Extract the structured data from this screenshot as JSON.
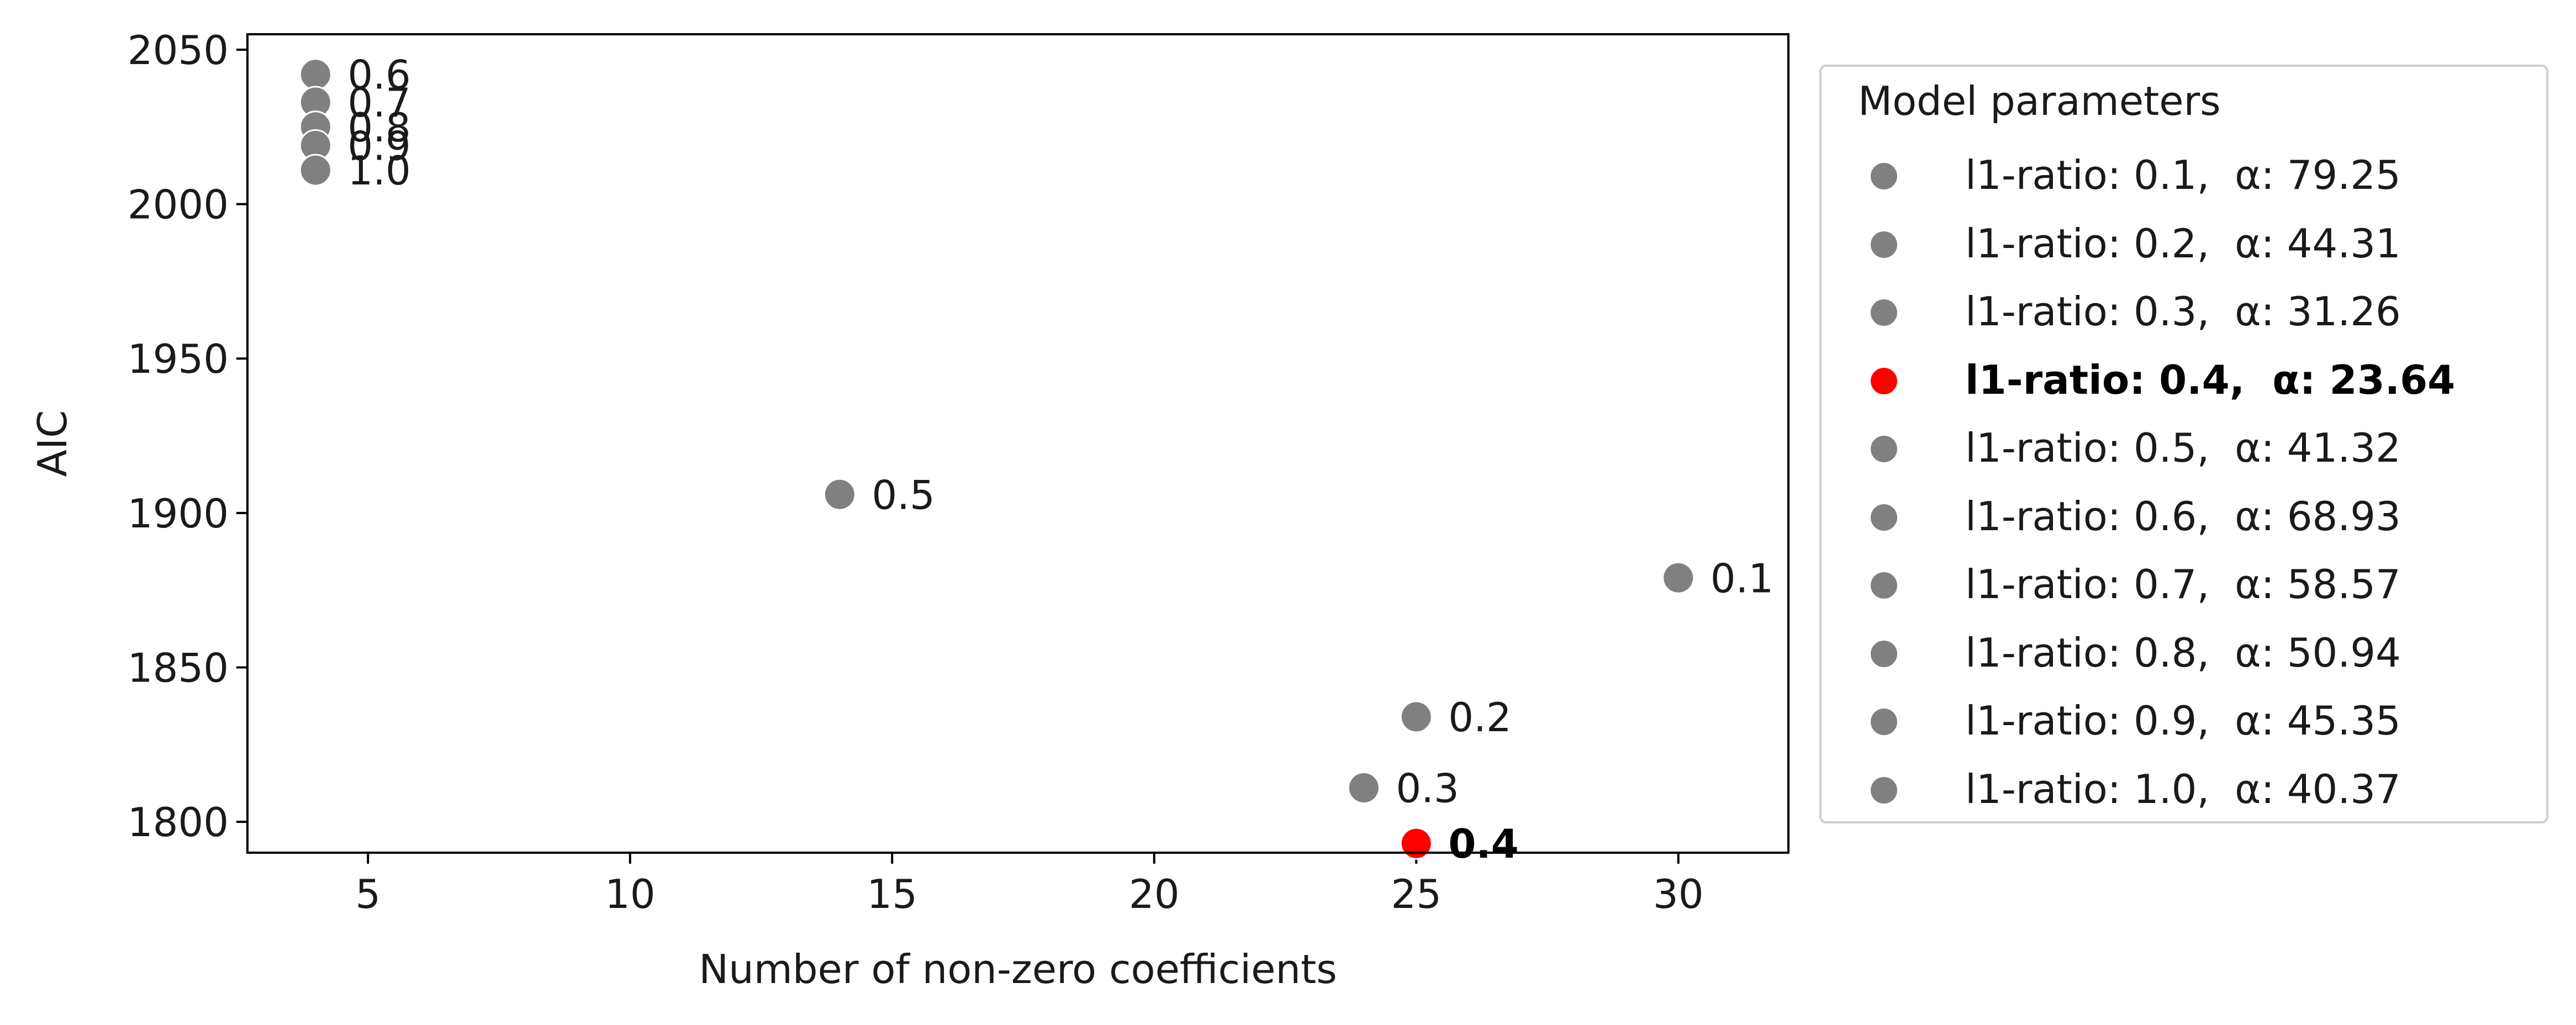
{
  "chart_data": {
    "type": "scatter",
    "title": "",
    "xlabel": "Number of non-zero coefficients",
    "ylabel": "AIC",
    "xlim": [
      2.7,
      32.1
    ],
    "ylim": [
      1790,
      2055
    ],
    "xticks": [
      5,
      10,
      15,
      20,
      25,
      30
    ],
    "yticks": [
      1800,
      1850,
      1900,
      1950,
      2000,
      2050
    ],
    "grid": false,
    "legend_placement": "outside-right",
    "legend_title": "Model parameters",
    "colors": {
      "default": "#808080",
      "best": "#ff0000"
    },
    "points": [
      {
        "l1_ratio": "0.1",
        "alpha": "79.25",
        "x": 30,
        "y": 1879,
        "label": "0.1",
        "best": false,
        "legend": "l1-ratio: 0.1,  α: 79.25"
      },
      {
        "l1_ratio": "0.2",
        "alpha": "44.31",
        "x": 25,
        "y": 1834,
        "label": "0.2",
        "best": false,
        "legend": "l1-ratio: 0.2,  α: 44.31"
      },
      {
        "l1_ratio": "0.3",
        "alpha": "31.26",
        "x": 24,
        "y": 1811,
        "label": "0.3",
        "best": false,
        "legend": "l1-ratio: 0.3,  α: 31.26"
      },
      {
        "l1_ratio": "0.4",
        "alpha": "23.64",
        "x": 25,
        "y": 1793,
        "label": "0.4",
        "best": true,
        "legend": "l1-ratio: 0.4,  α: 23.64"
      },
      {
        "l1_ratio": "0.5",
        "alpha": "41.32",
        "x": 14,
        "y": 1906,
        "label": "0.5",
        "best": false,
        "legend": "l1-ratio: 0.5,  α: 41.32"
      },
      {
        "l1_ratio": "0.6",
        "alpha": "68.93",
        "x": 4,
        "y": 2042,
        "label": "0.6",
        "best": false,
        "legend": "l1-ratio: 0.6,  α: 68.93"
      },
      {
        "l1_ratio": "0.7",
        "alpha": "58.57",
        "x": 4,
        "y": 2033,
        "label": "0.7",
        "best": false,
        "legend": "l1-ratio: 0.7,  α: 58.57"
      },
      {
        "l1_ratio": "0.8",
        "alpha": "50.94",
        "x": 4,
        "y": 2025,
        "label": "0.8",
        "best": false,
        "legend": "l1-ratio: 0.8,  α: 50.94"
      },
      {
        "l1_ratio": "0.9",
        "alpha": "45.35",
        "x": 4,
        "y": 2019,
        "label": "0.9",
        "best": false,
        "legend": "l1-ratio: 0.9,  α: 45.35"
      },
      {
        "l1_ratio": "1.0",
        "alpha": "40.37",
        "x": 4,
        "y": 2011,
        "label": "1.0",
        "best": false,
        "legend": "l1-ratio: 1.0,  α: 40.37"
      }
    ]
  }
}
